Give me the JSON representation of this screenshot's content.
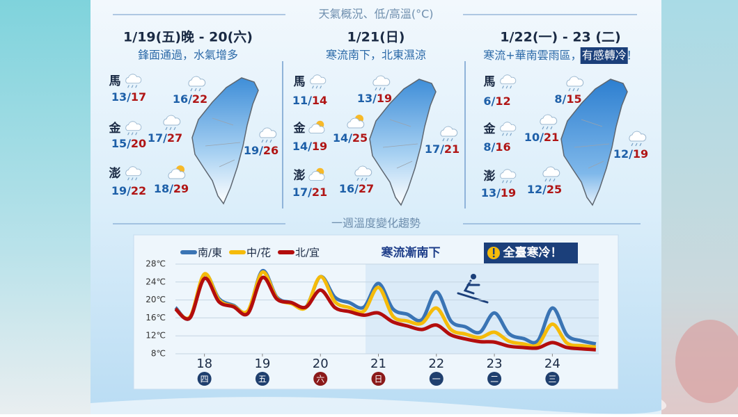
{
  "header": {
    "title": "天氣概況、低/高溫(°C)",
    "separator": "/"
  },
  "panels": [
    {
      "date": "1/19(五)晚 - 20(六)",
      "subtitle": "鋒面通過，水氣增多",
      "cities": [
        {
          "name": "馬",
          "low": 13,
          "high": 17
        },
        {
          "name": "金",
          "low": 15,
          "high": 20
        },
        {
          "name": "澎",
          "low": 19,
          "high": 22
        }
      ],
      "regions": [
        {
          "low": 16,
          "high": 22
        },
        {
          "low": 17,
          "high": 27
        },
        {
          "low": 19,
          "high": 26
        },
        {
          "low": 18,
          "high": 29
        }
      ]
    },
    {
      "date": "1/21(日)",
      "subtitle": "寒流南下，北東濕涼",
      "cities": [
        {
          "name": "馬",
          "low": 11,
          "high": 14
        },
        {
          "name": "金",
          "low": 14,
          "high": 19
        },
        {
          "name": "澎",
          "low": 17,
          "high": 21
        }
      ],
      "regions": [
        {
          "low": 13,
          "high": 19
        },
        {
          "low": 14,
          "high": 25
        },
        {
          "low": 17,
          "high": 21
        },
        {
          "low": 16,
          "high": 27
        }
      ]
    },
    {
      "date": "1/22(一) - 23 (二)",
      "subtitle": "寒流+華南雲雨區，",
      "highlight": "有感轉冷",
      "subtitle_end": "！",
      "cities": [
        {
          "name": "馬",
          "low": 6,
          "high": 12
        },
        {
          "name": "金",
          "low": 8,
          "high": 16
        },
        {
          "name": "澎",
          "low": 13,
          "high": 19
        }
      ],
      "regions": [
        {
          "low": 8,
          "high": 15
        },
        {
          "low": 10,
          "high": 21
        },
        {
          "low": 12,
          "high": 19
        },
        {
          "low": 12,
          "high": 25
        }
      ]
    }
  ],
  "chart_data": {
    "type": "line",
    "section_title": "一週溫度變化趨勢",
    "title": "寒流漸南下",
    "badge": "全臺寒冷！",
    "x": [
      17.5,
      17.75,
      18,
      18.25,
      18.5,
      18.75,
      19,
      19.25,
      19.5,
      19.75,
      20,
      20.25,
      20.5,
      20.75,
      21,
      21.25,
      21.5,
      21.75,
      22,
      22.25,
      22.5,
      22.75,
      23,
      23.25,
      23.5,
      23.75,
      24,
      24.25,
      24.5,
      24.75
    ],
    "series": [
      {
        "name": "南/東",
        "color": "#3a74b4",
        "values": [
          18.3,
          16,
          25.7,
          20.3,
          18.8,
          17.5,
          26.5,
          20.6,
          19.4,
          18.4,
          25.2,
          20.6,
          19.4,
          18.4,
          23.7,
          18,
          16.8,
          15.6,
          21.8,
          15.3,
          14,
          12.8,
          17.1,
          12.5,
          11.4,
          10.9,
          18.2,
          12.2,
          10.9,
          10.2
        ]
      },
      {
        "name": "中/花",
        "color": "#f5bb0a",
        "values": [
          18,
          16.2,
          25.8,
          20,
          18.6,
          17.6,
          26.2,
          20.4,
          19.2,
          18.3,
          25.2,
          19.6,
          18.3,
          17.5,
          22.8,
          16.4,
          15.3,
          14.8,
          18.2,
          13.4,
          12.4,
          11.6,
          12.8,
          10.8,
          10.2,
          10,
          14.6,
          10.4,
          9.8,
          9.5
        ]
      },
      {
        "name": "北/宜",
        "color": "#b30d0d",
        "values": [
          18,
          16,
          24.8,
          19.6,
          18.5,
          17,
          25,
          20.2,
          19.4,
          18.4,
          22.2,
          18.3,
          17.4,
          16.6,
          17.1,
          15.1,
          14.2,
          13.4,
          14.4,
          12.2,
          11.3,
          10.7,
          10.6,
          9.7,
          9.4,
          9.3,
          10.5,
          9.4,
          9.1,
          8.9
        ]
      }
    ],
    "xlim": [
      17.5,
      24.8
    ],
    "xticks": [
      18,
      19,
      20,
      21,
      22,
      23,
      24
    ],
    "weekdays": [
      "四",
      "五",
      "六",
      "日",
      "一",
      "二",
      "三"
    ],
    "ylim": [
      8,
      28
    ],
    "yticks": [
      {
        "value": 8,
        "label": "8℃"
      },
      {
        "value": 12,
        "label": "12℃"
      },
      {
        "value": 16,
        "label": "16℃"
      },
      {
        "value": 20,
        "label": "20℃"
      },
      {
        "value": 24,
        "label": "24℃"
      },
      {
        "value": 28,
        "label": "28℃"
      }
    ],
    "grid": true,
    "legend": "top-left"
  }
}
